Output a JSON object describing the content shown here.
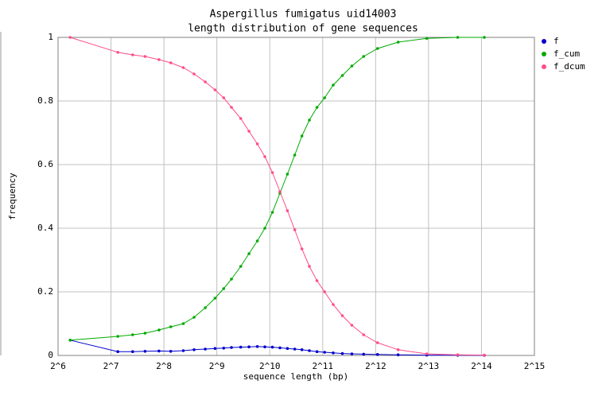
{
  "chart_data": {
    "type": "line",
    "title": "Aspergillus fumigatus uid14003",
    "subtitle": "length distribution of gene sequences",
    "x_label": "sequence length (bp)",
    "y_label": "frequency",
    "x": [
      75,
      140,
      170,
      200,
      240,
      280,
      330,
      380,
      440,
      500,
      560,
      620,
      700,
      780,
      870,
      960,
      1060,
      1170,
      1290,
      1420,
      1560,
      1720,
      1900,
      2100,
      2350,
      2650,
      3000,
      3500,
      4200,
      5500,
      8000,
      12000,
      17000
    ],
    "series": [
      {
        "name": "f",
        "color": "#0000cc",
        "values": [
          0.048,
          0.012,
          0.012,
          0.013,
          0.014,
          0.013,
          0.015,
          0.018,
          0.02,
          0.022,
          0.023,
          0.025,
          0.026,
          0.027,
          0.028,
          0.027,
          0.026,
          0.024,
          0.022,
          0.02,
          0.018,
          0.015,
          0.012,
          0.01,
          0.008,
          0.006,
          0.005,
          0.004,
          0.003,
          0.002,
          0.001,
          0.0005,
          0.0002
        ]
      },
      {
        "name": "f_cum",
        "color": "#00aa00",
        "values": [
          0.048,
          0.06,
          0.065,
          0.07,
          0.08,
          0.09,
          0.1,
          0.12,
          0.15,
          0.18,
          0.21,
          0.24,
          0.28,
          0.32,
          0.36,
          0.4,
          0.45,
          0.51,
          0.57,
          0.63,
          0.69,
          0.74,
          0.78,
          0.81,
          0.85,
          0.88,
          0.91,
          0.94,
          0.965,
          0.985,
          0.997,
          1,
          1
        ]
      },
      {
        "name": "f_dcum",
        "color": "#ff4d88",
        "values": [
          1,
          0.953,
          0.945,
          0.94,
          0.93,
          0.92,
          0.905,
          0.885,
          0.86,
          0.835,
          0.81,
          0.78,
          0.745,
          0.705,
          0.665,
          0.625,
          0.575,
          0.515,
          0.455,
          0.395,
          0.335,
          0.28,
          0.235,
          0.2,
          0.16,
          0.125,
          0.095,
          0.065,
          0.04,
          0.018,
          0.005,
          0.002,
          0.001
        ]
      }
    ],
    "xlog_base": 2,
    "xlim": [
      64,
      32768
    ],
    "xticks": [
      {
        "value": 64,
        "label": "2^6"
      },
      {
        "value": 128,
        "label": "2^7"
      },
      {
        "value": 256,
        "label": "2^8"
      },
      {
        "value": 512,
        "label": "2^9"
      },
      {
        "value": 1024,
        "label": "2^10"
      },
      {
        "value": 2048,
        "label": "2^11"
      },
      {
        "value": 4096,
        "label": "2^12"
      },
      {
        "value": 8192,
        "label": "2^13"
      },
      {
        "value": 16384,
        "label": "2^14"
      },
      {
        "value": 32768,
        "label": "2^15"
      }
    ],
    "ylim": [
      0,
      1
    ],
    "yticks": [
      0,
      0.2,
      0.4,
      0.6,
      0.8,
      1
    ],
    "grid": true,
    "legend": "right"
  }
}
